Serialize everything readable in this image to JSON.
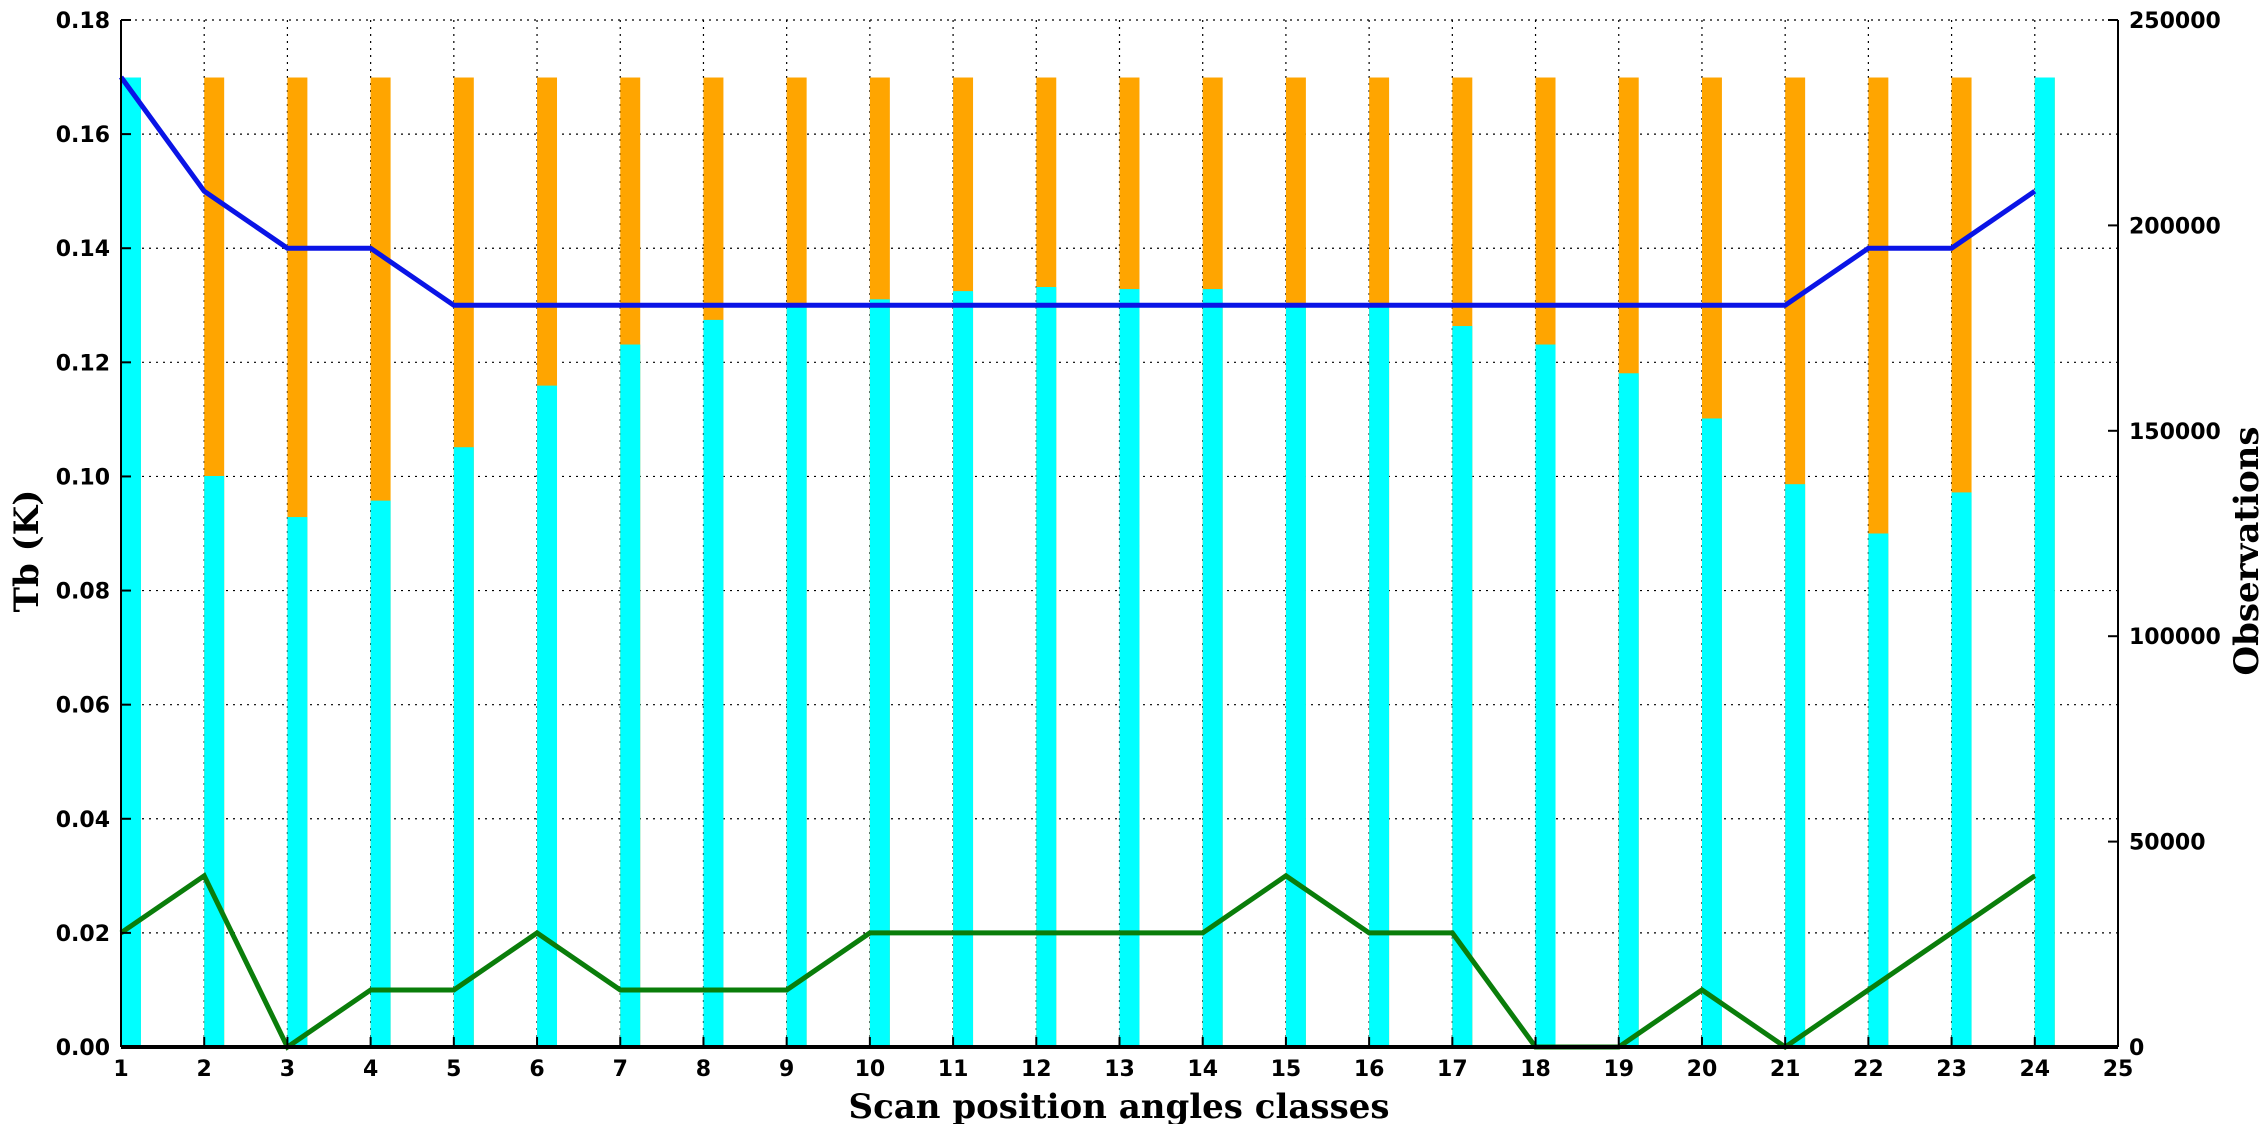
{
  "chart_data": {
    "type": "bar",
    "xlabel": "Scan position angles classes",
    "ylabel_left": "Tb (K)",
    "ylabel_right": "Observations",
    "x_ticks": [
      "1",
      "2",
      "3",
      "4",
      "5",
      "6",
      "7",
      "8",
      "9",
      "10",
      "11",
      "12",
      "13",
      "14",
      "15",
      "16",
      "17",
      "18",
      "19",
      "20",
      "21",
      "22",
      "23",
      "24",
      "25"
    ],
    "y_left_ticks": [
      "0.00",
      "0.02",
      "0.04",
      "0.06",
      "0.08",
      "0.10",
      "0.12",
      "0.14",
      "0.16",
      "0.18"
    ],
    "y_right_ticks": [
      "0",
      "50000",
      "100000",
      "150000",
      "200000",
      "250000"
    ],
    "xlim": [
      1,
      25
    ],
    "ylim_left": [
      0,
      0.18
    ],
    "ylim_right": [
      0,
      250000
    ],
    "grid": true,
    "colors": {
      "total_bar": "#ffa500",
      "used_bar": "#00ffff",
      "blue_line": "#0a14e6",
      "green_line": "#0a7d0a"
    },
    "x": [
      1,
      2,
      3,
      4,
      5,
      6,
      7,
      8,
      9,
      10,
      11,
      12,
      13,
      14,
      15,
      16,
      17,
      18,
      19,
      20,
      21,
      22,
      23,
      24
    ],
    "series": [
      {
        "kind": "bar",
        "axis": "right",
        "color": "#ffa500",
        "values": [
          236000,
          236000,
          236000,
          236000,
          236000,
          236000,
          236000,
          236000,
          236000,
          236000,
          236000,
          236000,
          236000,
          236000,
          236000,
          236000,
          236000,
          236000,
          236000,
          236000,
          236000,
          236000,
          236000,
          236000
        ]
      },
      {
        "kind": "bar",
        "axis": "right",
        "color": "#00ffff",
        "values": [
          236000,
          139000,
          129000,
          133000,
          146000,
          161000,
          171000,
          177000,
          181000,
          182000,
          184000,
          185000,
          184500,
          184500,
          181000,
          180000,
          175500,
          171000,
          164000,
          153000,
          137000,
          125000,
          135000,
          236000
        ]
      },
      {
        "kind": "line",
        "axis": "left",
        "color": "#0a14e6",
        "values": [
          0.17,
          0.15,
          0.14,
          0.14,
          0.13,
          0.13,
          0.13,
          0.13,
          0.13,
          0.13,
          0.13,
          0.13,
          0.13,
          0.13,
          0.13,
          0.13,
          0.13,
          0.13,
          0.13,
          0.13,
          0.13,
          0.14,
          0.14,
          0.15
        ]
      },
      {
        "kind": "line",
        "axis": "left",
        "color": "#0a7d0a",
        "values": [
          0.02,
          0.03,
          0.0,
          0.01,
          0.01,
          0.02,
          0.01,
          0.01,
          0.01,
          0.02,
          0.02,
          0.02,
          0.02,
          0.02,
          0.03,
          0.02,
          0.02,
          0.0,
          0.0,
          0.01,
          0.0,
          0.01,
          0.02,
          0.03
        ]
      }
    ]
  }
}
